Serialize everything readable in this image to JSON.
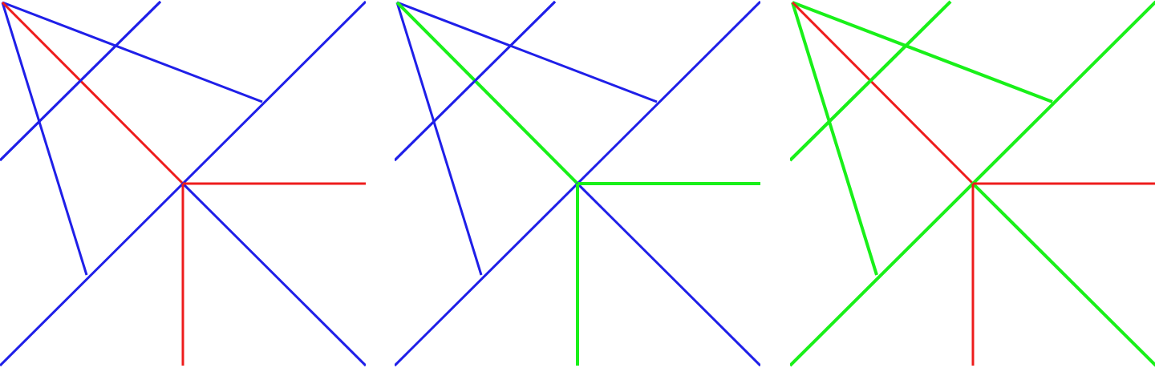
{
  "colors": {
    "background": "#ffffff",
    "default_line": "#1f1fe8",
    "highlight_red": "#ee1c1c",
    "highlight_green": "#19f019"
  },
  "panels": [
    {
      "name": "panel-1",
      "segments": [
        {
          "id": "a",
          "color": "default_line"
        },
        {
          "id": "b",
          "color": "default_line"
        },
        {
          "id": "c",
          "color": "default_line"
        },
        {
          "id": "d",
          "color": "highlight_red"
        },
        {
          "id": "e",
          "color": "default_line"
        },
        {
          "id": "f",
          "color": "default_line"
        },
        {
          "id": "g",
          "color": "highlight_red"
        },
        {
          "id": "h",
          "color": "highlight_red"
        },
        {
          "id": "i",
          "color": "default_line"
        }
      ]
    },
    {
      "name": "panel-2",
      "segments": [
        {
          "id": "a",
          "color": "default_line"
        },
        {
          "id": "b",
          "color": "default_line"
        },
        {
          "id": "c",
          "color": "default_line"
        },
        {
          "id": "d",
          "color": "highlight_green"
        },
        {
          "id": "e",
          "color": "default_line"
        },
        {
          "id": "f",
          "color": "default_line"
        },
        {
          "id": "g",
          "color": "highlight_green"
        },
        {
          "id": "h",
          "color": "highlight_green"
        },
        {
          "id": "i",
          "color": "default_line"
        }
      ]
    },
    {
      "name": "panel-3",
      "segments": [
        {
          "id": "a",
          "color": "highlight_green"
        },
        {
          "id": "b",
          "color": "highlight_green"
        },
        {
          "id": "c",
          "color": "highlight_green"
        },
        {
          "id": "d",
          "color": "highlight_red"
        },
        {
          "id": "e",
          "color": "highlight_green"
        },
        {
          "id": "f",
          "color": "highlight_green"
        },
        {
          "id": "g",
          "color": "highlight_red"
        },
        {
          "id": "h",
          "color": "highlight_red"
        },
        {
          "id": "i",
          "color": "highlight_green"
        }
      ]
    }
  ]
}
